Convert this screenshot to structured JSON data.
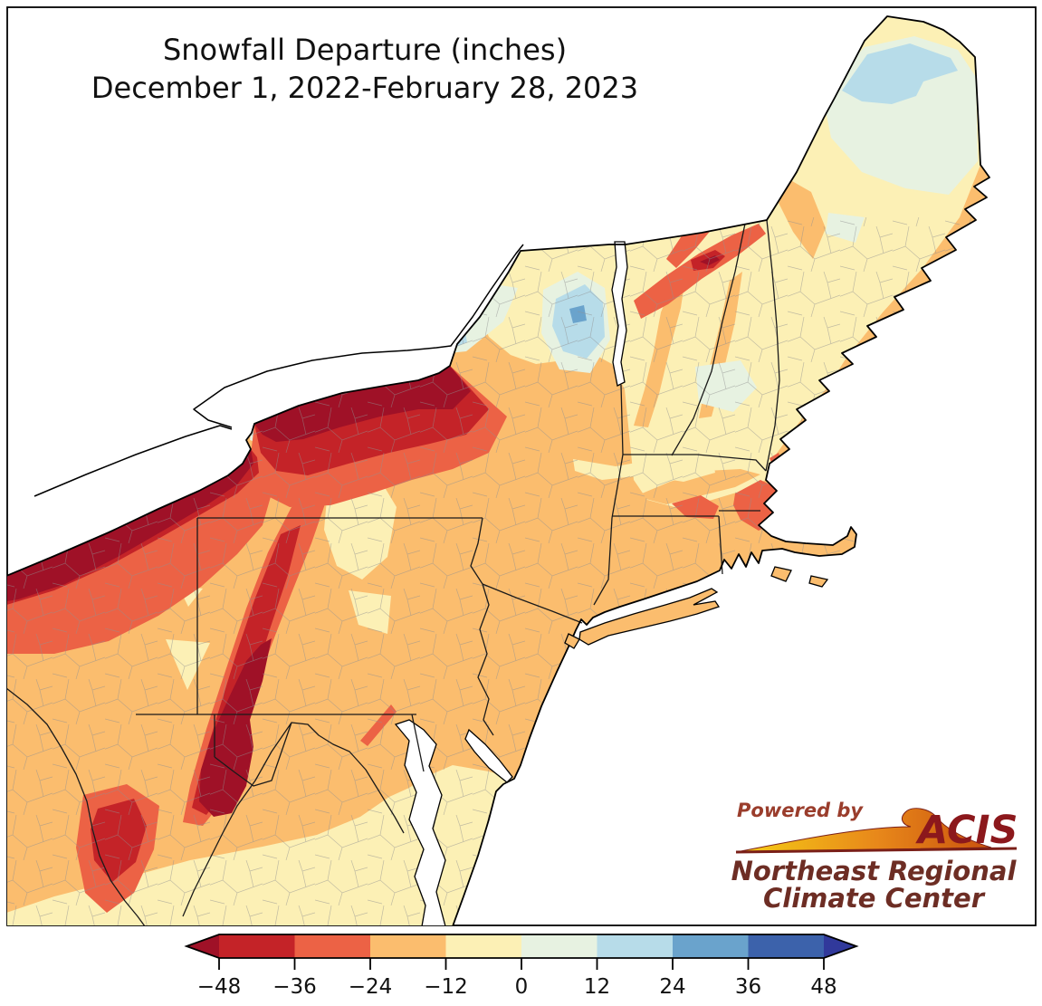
{
  "title": {
    "line1": "Snowfall Departure (inches)",
    "line2": "December 1, 2022-February 28, 2023"
  },
  "colorbar": {
    "ticks": [
      "−48",
      "−36",
      "−24",
      "−12",
      "0",
      "12",
      "24",
      "36",
      "48"
    ],
    "unit": "inches"
  },
  "palette": {
    "levels": [
      {
        "range": "< −48",
        "color": "#9F1127"
      },
      {
        "range": "−48 to −36",
        "color": "#C42328"
      },
      {
        "range": "−36 to −24",
        "color": "#EC6245"
      },
      {
        "range": "−24 to −12",
        "color": "#FBBD6E"
      },
      {
        "range": "−12 to 0",
        "color": "#FCF0B5"
      },
      {
        "range": "0 to 12",
        "color": "#E7F2E1"
      },
      {
        "range": "12 to 24",
        "color": "#B7DCE9"
      },
      {
        "range": "24 to 36",
        "color": "#6AA3CC"
      },
      {
        "range": "36 to 48",
        "color": "#3C62AB"
      },
      {
        "range": "> 48",
        "color": "#31399B"
      }
    ]
  },
  "logo": {
    "powered_by": "Powered by",
    "acis": "ACIS",
    "org_line1": "Northeast Regional",
    "org_line2": "Climate Center",
    "powered_by_color": "#9a3d2c",
    "acis_color": "#8c181c",
    "org_color": "#6d2d24"
  },
  "chart_data": {
    "type": "choropleth-map",
    "title": "Snowfall Departure (inches)",
    "subtitle": "December 1, 2022-February 28, 2023",
    "region": "Northeastern United States",
    "legend": {
      "orientation": "horizontal",
      "ticks": [
        -48,
        -36,
        -24,
        -12,
        0,
        12,
        24,
        36,
        48
      ],
      "unit": "inches",
      "extend": "both"
    },
    "notable_features": [
      "Large negative departures (below -48 in) along Lake Erie and south shore of Lake Ontario in western New York",
      "Dark red deficit streak through central Pennsylvania into Maryland/West Virginia",
      "Positive departures (12 to 36 in) in far northern Maine and near Plattsburgh NY",
      "Most of the region -24 to -12 inches below normal"
    ]
  }
}
